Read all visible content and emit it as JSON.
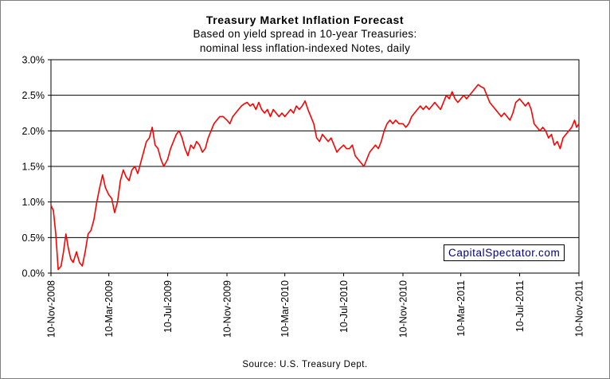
{
  "chart_data": {
    "type": "line",
    "title": "Treasury Market Inflation Forecast",
    "subtitle_lines": [
      "Based on yield spread in 10-year Treasuries:",
      "nominal less inflation-indexed Notes, daily"
    ],
    "source": "Source: U.S. Treasury Dept.",
    "watermark": "CapitalSpectator.com",
    "y_ticks": [
      "0.0%",
      "0.5%",
      "1.0%",
      "1.5%",
      "2.0%",
      "2.5%",
      "3.0%"
    ],
    "y_tick_values": [
      0.0,
      0.5,
      1.0,
      1.5,
      2.0,
      2.5,
      3.0
    ],
    "ylim": [
      0,
      3.0
    ],
    "x_ticks": [
      "10-Nov-2008",
      "10-Mar-2009",
      "10-Jul-2009",
      "10-Nov-2009",
      "10-Mar-2010",
      "10-Jul-2010",
      "10-Nov-2010",
      "10-Mar-2011",
      "10-Jul-2011",
      "10-Nov-2011"
    ],
    "x_tick_dates": [
      "2008-11-10",
      "2009-03-10",
      "2009-07-10",
      "2009-11-10",
      "2010-03-10",
      "2010-07-10",
      "2010-11-10",
      "2011-03-10",
      "2011-07-10",
      "2011-11-10"
    ],
    "xlim": [
      "2008-11-10",
      "2011-11-10"
    ],
    "grid": "horizontal",
    "line_color": "#ff0000",
    "series": [
      {
        "values": [
          [
            "2008-11-10",
            0.95
          ],
          [
            "2008-11-15",
            0.88
          ],
          [
            "2008-11-20",
            0.55
          ],
          [
            "2008-11-25",
            0.05
          ],
          [
            "2008-12-01",
            0.1
          ],
          [
            "2008-12-06",
            0.3
          ],
          [
            "2008-12-11",
            0.55
          ],
          [
            "2008-12-16",
            0.35
          ],
          [
            "2008-12-21",
            0.2
          ],
          [
            "2008-12-26",
            0.15
          ],
          [
            "2009-01-02",
            0.3
          ],
          [
            "2009-01-08",
            0.15
          ],
          [
            "2009-01-14",
            0.1
          ],
          [
            "2009-01-20",
            0.3
          ],
          [
            "2009-01-26",
            0.55
          ],
          [
            "2009-02-01",
            0.6
          ],
          [
            "2009-02-07",
            0.75
          ],
          [
            "2009-02-13",
            1.0
          ],
          [
            "2009-02-19",
            1.2
          ],
          [
            "2009-02-25",
            1.38
          ],
          [
            "2009-03-03",
            1.2
          ],
          [
            "2009-03-10",
            1.1
          ],
          [
            "2009-03-16",
            1.05
          ],
          [
            "2009-03-22",
            0.85
          ],
          [
            "2009-03-28",
            1.0
          ],
          [
            "2009-04-03",
            1.3
          ],
          [
            "2009-04-09",
            1.45
          ],
          [
            "2009-04-15",
            1.35
          ],
          [
            "2009-04-21",
            1.3
          ],
          [
            "2009-04-27",
            1.45
          ],
          [
            "2009-05-03",
            1.5
          ],
          [
            "2009-05-09",
            1.4
          ],
          [
            "2009-05-15",
            1.55
          ],
          [
            "2009-05-21",
            1.7
          ],
          [
            "2009-05-27",
            1.85
          ],
          [
            "2009-06-02",
            1.9
          ],
          [
            "2009-06-08",
            2.05
          ],
          [
            "2009-06-14",
            1.8
          ],
          [
            "2009-06-20",
            1.75
          ],
          [
            "2009-06-26",
            1.6
          ],
          [
            "2009-07-02",
            1.5
          ],
          [
            "2009-07-10",
            1.6
          ],
          [
            "2009-07-16",
            1.75
          ],
          [
            "2009-07-22",
            1.85
          ],
          [
            "2009-07-28",
            1.95
          ],
          [
            "2009-08-03",
            2.0
          ],
          [
            "2009-08-09",
            1.9
          ],
          [
            "2009-08-15",
            1.75
          ],
          [
            "2009-08-21",
            1.65
          ],
          [
            "2009-08-27",
            1.8
          ],
          [
            "2009-09-02",
            1.75
          ],
          [
            "2009-09-08",
            1.85
          ],
          [
            "2009-09-14",
            1.8
          ],
          [
            "2009-09-20",
            1.7
          ],
          [
            "2009-09-26",
            1.75
          ],
          [
            "2009-10-02",
            1.9
          ],
          [
            "2009-10-08",
            2.0
          ],
          [
            "2009-10-14",
            2.1
          ],
          [
            "2009-10-20",
            2.15
          ],
          [
            "2009-10-26",
            2.2
          ],
          [
            "2009-11-02",
            2.2
          ],
          [
            "2009-11-10",
            2.15
          ],
          [
            "2009-11-16",
            2.1
          ],
          [
            "2009-11-22",
            2.2
          ],
          [
            "2009-11-28",
            2.25
          ],
          [
            "2009-12-04",
            2.3
          ],
          [
            "2009-12-10",
            2.35
          ],
          [
            "2009-12-16",
            2.38
          ],
          [
            "2009-12-22",
            2.4
          ],
          [
            "2009-12-28",
            2.35
          ],
          [
            "2010-01-03",
            2.38
          ],
          [
            "2010-01-09",
            2.3
          ],
          [
            "2010-01-15",
            2.4
          ],
          [
            "2010-01-21",
            2.3
          ],
          [
            "2010-01-27",
            2.25
          ],
          [
            "2010-02-02",
            2.3
          ],
          [
            "2010-02-08",
            2.2
          ],
          [
            "2010-02-14",
            2.3
          ],
          [
            "2010-02-20",
            2.25
          ],
          [
            "2010-02-26",
            2.2
          ],
          [
            "2010-03-04",
            2.25
          ],
          [
            "2010-03-10",
            2.2
          ],
          [
            "2010-03-16",
            2.25
          ],
          [
            "2010-03-22",
            2.3
          ],
          [
            "2010-03-28",
            2.25
          ],
          [
            "2010-04-03",
            2.35
          ],
          [
            "2010-04-09",
            2.3
          ],
          [
            "2010-04-15",
            2.35
          ],
          [
            "2010-04-21",
            2.42
          ],
          [
            "2010-04-27",
            2.3
          ],
          [
            "2010-05-03",
            2.2
          ],
          [
            "2010-05-09",
            2.1
          ],
          [
            "2010-05-15",
            1.9
          ],
          [
            "2010-05-21",
            1.85
          ],
          [
            "2010-05-27",
            1.95
          ],
          [
            "2010-06-02",
            1.9
          ],
          [
            "2010-06-08",
            1.85
          ],
          [
            "2010-06-14",
            1.9
          ],
          [
            "2010-06-20",
            1.8
          ],
          [
            "2010-06-26",
            1.7
          ],
          [
            "2010-07-02",
            1.75
          ],
          [
            "2010-07-10",
            1.8
          ],
          [
            "2010-07-16",
            1.75
          ],
          [
            "2010-07-22",
            1.75
          ],
          [
            "2010-07-28",
            1.8
          ],
          [
            "2010-08-03",
            1.65
          ],
          [
            "2010-08-09",
            1.6
          ],
          [
            "2010-08-15",
            1.55
          ],
          [
            "2010-08-21",
            1.5
          ],
          [
            "2010-08-27",
            1.6
          ],
          [
            "2010-09-02",
            1.7
          ],
          [
            "2010-09-08",
            1.75
          ],
          [
            "2010-09-14",
            1.8
          ],
          [
            "2010-09-20",
            1.75
          ],
          [
            "2010-09-26",
            1.85
          ],
          [
            "2010-10-02",
            2.0
          ],
          [
            "2010-10-08",
            2.1
          ],
          [
            "2010-10-14",
            2.15
          ],
          [
            "2010-10-20",
            2.1
          ],
          [
            "2010-10-26",
            2.15
          ],
          [
            "2010-11-02",
            2.1
          ],
          [
            "2010-11-10",
            2.1
          ],
          [
            "2010-11-16",
            2.05
          ],
          [
            "2010-11-22",
            2.1
          ],
          [
            "2010-11-28",
            2.2
          ],
          [
            "2010-12-04",
            2.25
          ],
          [
            "2010-12-10",
            2.3
          ],
          [
            "2010-12-16",
            2.35
          ],
          [
            "2010-12-22",
            2.3
          ],
          [
            "2010-12-28",
            2.35
          ],
          [
            "2011-01-03",
            2.3
          ],
          [
            "2011-01-09",
            2.35
          ],
          [
            "2011-01-15",
            2.4
          ],
          [
            "2011-01-21",
            2.35
          ],
          [
            "2011-01-27",
            2.3
          ],
          [
            "2011-02-02",
            2.4
          ],
          [
            "2011-02-08",
            2.5
          ],
          [
            "2011-02-14",
            2.45
          ],
          [
            "2011-02-20",
            2.55
          ],
          [
            "2011-02-26",
            2.45
          ],
          [
            "2011-03-04",
            2.4
          ],
          [
            "2011-03-10",
            2.45
          ],
          [
            "2011-03-16",
            2.5
          ],
          [
            "2011-03-22",
            2.45
          ],
          [
            "2011-03-28",
            2.5
          ],
          [
            "2011-04-03",
            2.55
          ],
          [
            "2011-04-09",
            2.6
          ],
          [
            "2011-04-15",
            2.65
          ],
          [
            "2011-04-21",
            2.62
          ],
          [
            "2011-04-27",
            2.6
          ],
          [
            "2011-05-03",
            2.5
          ],
          [
            "2011-05-09",
            2.4
          ],
          [
            "2011-05-15",
            2.35
          ],
          [
            "2011-05-21",
            2.3
          ],
          [
            "2011-05-27",
            2.25
          ],
          [
            "2011-06-02",
            2.2
          ],
          [
            "2011-06-08",
            2.25
          ],
          [
            "2011-06-14",
            2.2
          ],
          [
            "2011-06-20",
            2.15
          ],
          [
            "2011-06-26",
            2.25
          ],
          [
            "2011-07-02",
            2.4
          ],
          [
            "2011-07-10",
            2.45
          ],
          [
            "2011-07-16",
            2.4
          ],
          [
            "2011-07-22",
            2.35
          ],
          [
            "2011-07-28",
            2.4
          ],
          [
            "2011-08-03",
            2.3
          ],
          [
            "2011-08-09",
            2.1
          ],
          [
            "2011-08-15",
            2.05
          ],
          [
            "2011-08-21",
            2.0
          ],
          [
            "2011-08-27",
            2.05
          ],
          [
            "2011-09-02",
            2.0
          ],
          [
            "2011-09-08",
            1.9
          ],
          [
            "2011-09-14",
            1.95
          ],
          [
            "2011-09-20",
            1.8
          ],
          [
            "2011-09-26",
            1.85
          ],
          [
            "2011-10-02",
            1.75
          ],
          [
            "2011-10-08",
            1.9
          ],
          [
            "2011-10-14",
            1.95
          ],
          [
            "2011-10-20",
            2.0
          ],
          [
            "2011-10-26",
            2.05
          ],
          [
            "2011-11-01",
            2.15
          ],
          [
            "2011-11-05",
            2.05
          ],
          [
            "2011-11-10",
            2.1
          ]
        ]
      }
    ]
  }
}
